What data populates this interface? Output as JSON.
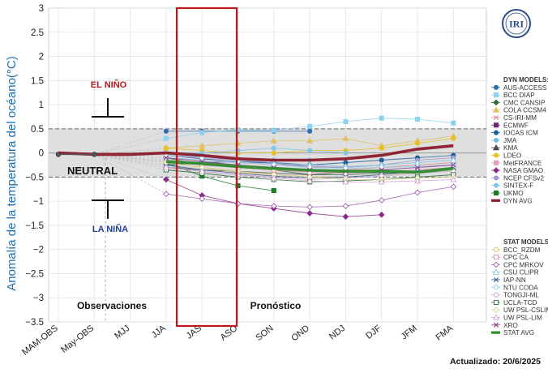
{
  "chart_data": {
    "type": "line",
    "ylabel": "Anomalía  de la temperatura del océano(°C)",
    "ylim": [
      -3.5,
      3
    ],
    "yticks": [
      "3",
      "2.5",
      "2",
      "1.5",
      "1",
      "0.5",
      "0",
      "−0.5",
      "−1",
      "−1.5",
      "−2",
      "−2.5",
      "−3",
      "−3.5"
    ],
    "categories": [
      "MAM-OBS",
      "May-OBS",
      "MJJ",
      "JJA",
      "JAS",
      "ASO",
      "SON",
      "OND",
      "NDJ",
      "DJF",
      "JFM",
      "FMA"
    ],
    "grid": true,
    "legend_position": "right",
    "thresholds": [
      0.5,
      -0.5
    ],
    "annotations": {
      "el_nino": "EL NIÑO",
      "la_nina": "LA NIÑA",
      "neutral": "NEUTRAL",
      "observations": "Observaciones",
      "forecast": "Pronóstico",
      "updated": "Actualizado: 20/6/2025",
      "logo": "IRI"
    },
    "observed": {
      "values": [
        -0.03,
        -0.03
      ]
    },
    "legend_dyn_title": "DYN MODELS:",
    "legend_stat_title": "STAT MODELS:",
    "series": [
      {
        "name": "AUS-ACCESS",
        "group": "dyn",
        "color": "#2e6fb0",
        "marker": "circle",
        "values": [
          null,
          null,
          null,
          0.45,
          0.45,
          0.45,
          0.45,
          0.45,
          null,
          null,
          null,
          null
        ]
      },
      {
        "name": "BCC DIAP",
        "group": "dyn",
        "color": "#8ed3ee",
        "marker": "square",
        "values": [
          null,
          null,
          null,
          0.3,
          0.42,
          0.48,
          0.47,
          0.55,
          0.65,
          0.72,
          0.7,
          0.62
        ]
      },
      {
        "name": "CMC CANSIP",
        "group": "dyn",
        "color": "#2b6b3a",
        "marker": "diamond",
        "values": [
          null,
          null,
          null,
          -0.1,
          -0.25,
          -0.3,
          -0.35,
          -0.45,
          -0.45,
          -0.42,
          -0.4,
          -0.35
        ]
      },
      {
        "name": "COLA CCSM4",
        "group": "dyn",
        "color": "#e0c060",
        "marker": "triangle",
        "values": [
          null,
          null,
          null,
          0.1,
          0.15,
          0.2,
          0.25,
          0.25,
          0.3,
          0.15,
          0.25,
          0.35
        ]
      },
      {
        "name": "CS-IRI-MM",
        "group": "dyn",
        "color": "#e08aa0",
        "marker": "x",
        "values": [
          null,
          null,
          null,
          -0.15,
          -0.22,
          -0.3,
          -0.35,
          -0.38,
          -0.35,
          -0.3,
          -0.25,
          -0.2
        ]
      },
      {
        "name": "ECMWF",
        "group": "dyn",
        "color": "#6a2a7a",
        "marker": "square",
        "values": [
          null,
          null,
          null,
          -0.05,
          -0.12,
          -0.18,
          -0.22,
          -0.28,
          -0.3,
          null,
          null,
          null
        ]
      },
      {
        "name": "IOCAS ICM",
        "group": "dyn",
        "color": "#1f5f9a",
        "marker": "circle",
        "values": [
          null,
          null,
          null,
          -0.25,
          -0.2,
          -0.18,
          -0.2,
          -0.25,
          -0.2,
          -0.15,
          -0.1,
          -0.05
        ]
      },
      {
        "name": "JMA",
        "group": "dyn",
        "color": "#6fc0e0",
        "marker": "circle",
        "values": [
          null,
          null,
          null,
          -0.05,
          -0.08,
          -0.12,
          -0.15,
          -0.15,
          null,
          null,
          null,
          null
        ]
      },
      {
        "name": "KMA",
        "group": "dyn",
        "color": "#4a4a4a",
        "marker": "triangle",
        "values": [
          null,
          null,
          null,
          -0.3,
          -0.35,
          -0.38,
          -0.42,
          -0.45,
          -0.4,
          null,
          null,
          null
        ]
      },
      {
        "name": "LDEO",
        "group": "dyn",
        "color": "#e8c020",
        "marker": "circle",
        "values": [
          null,
          null,
          null,
          0.1,
          0.05,
          0.0,
          0.0,
          0.05,
          0.05,
          0.1,
          0.2,
          0.3
        ]
      },
      {
        "name": "MetFRANCE",
        "group": "dyn",
        "color": "#e8a0b8",
        "marker": "square",
        "values": [
          null,
          null,
          null,
          -0.1,
          -0.15,
          -0.2,
          -0.25,
          -0.28,
          -0.3,
          null,
          null,
          null
        ]
      },
      {
        "name": "NASA GMAO",
        "group": "dyn",
        "color": "#8a2a8a",
        "marker": "diamond",
        "values": [
          null,
          null,
          null,
          -0.55,
          -0.88,
          -1.05,
          -1.15,
          -1.25,
          -1.32,
          -1.28,
          null,
          null
        ]
      },
      {
        "name": "NCEP CFSv2",
        "group": "dyn",
        "color": "#9a9ad0",
        "marker": "circle",
        "values": [
          null,
          null,
          null,
          -0.05,
          -0.1,
          -0.15,
          -0.2,
          -0.3,
          -0.3,
          -0.25,
          -0.15,
          -0.1
        ]
      },
      {
        "name": "SINTEX-F",
        "group": "dyn",
        "color": "#80c8e8",
        "marker": "circle",
        "values": [
          null,
          null,
          null,
          0.0,
          0.0,
          0.05,
          0.1,
          0.05,
          0.0,
          null,
          null,
          null
        ]
      },
      {
        "name": "UKMO",
        "group": "dyn",
        "color": "#1f7a2a",
        "marker": "square",
        "values": [
          null,
          null,
          null,
          -0.2,
          -0.48,
          -0.68,
          -0.78,
          null,
          null,
          null,
          null,
          null
        ]
      },
      {
        "name": "DYN AVG",
        "group": "dyn",
        "color": "#8b1a2b",
        "marker": "line",
        "values": [
          -0.0,
          -0.03,
          -0.03,
          0.0,
          -0.05,
          -0.12,
          -0.15,
          -0.15,
          -0.12,
          -0.05,
          0.08,
          0.15
        ]
      },
      {
        "name": "BCC_RZDM",
        "group": "stat",
        "color": "#e0c060",
        "marker": "circle-open",
        "values": [
          null,
          null,
          null,
          -0.2,
          -0.3,
          -0.4,
          -0.45,
          -0.5,
          -0.5,
          -0.45,
          -0.4,
          -0.35
        ]
      },
      {
        "name": "CPC CA",
        "group": "stat",
        "color": "#e890a8",
        "marker": "square-open",
        "values": [
          null,
          null,
          null,
          -0.15,
          -0.25,
          -0.3,
          -0.35,
          -0.4,
          -0.42,
          -0.4,
          -0.35,
          -0.3
        ]
      },
      {
        "name": "CPC MRKOV",
        "group": "stat",
        "color": "#a060b0",
        "marker": "diamond-open",
        "values": [
          null,
          null,
          null,
          -0.85,
          -0.95,
          -1.05,
          -1.1,
          -1.12,
          -1.1,
          -0.98,
          -0.82,
          -0.7
        ]
      },
      {
        "name": "CSU CLIPR",
        "group": "stat",
        "color": "#80c8e0",
        "marker": "triangle-open",
        "values": [
          null,
          null,
          null,
          -0.1,
          -0.15,
          -0.2,
          -0.22,
          -0.25,
          -0.28,
          -0.25,
          -0.2,
          -0.15
        ]
      },
      {
        "name": "IAP-NN",
        "group": "stat",
        "color": "#2a5a9a",
        "marker": "x",
        "values": [
          null,
          null,
          null,
          -0.25,
          -0.35,
          -0.42,
          -0.48,
          -0.52,
          -0.5,
          -0.45,
          -0.38,
          -0.3
        ]
      },
      {
        "name": "NTU CODA",
        "group": "stat",
        "color": "#90d0e8",
        "marker": "circle-open",
        "values": [
          null,
          null,
          null,
          -0.05,
          -0.1,
          -0.18,
          -0.25,
          -0.3,
          -0.32,
          -0.3,
          -0.28,
          -0.25
        ]
      },
      {
        "name": "TONGJI-ML",
        "group": "stat",
        "color": "#c8a8d0",
        "marker": "circle-open",
        "values": [
          null,
          null,
          null,
          -0.3,
          -0.38,
          -0.45,
          -0.5,
          -0.55,
          -0.52,
          -0.48,
          -0.42,
          -0.38
        ]
      },
      {
        "name": "UCLA-TCD",
        "group": "stat",
        "color": "#1f6a3a",
        "marker": "square-open",
        "values": [
          null,
          null,
          null,
          -0.35,
          -0.42,
          -0.5,
          -0.55,
          -0.6,
          -0.58,
          -0.55,
          -0.5,
          -0.45
        ]
      },
      {
        "name": "UW PSL-CSLIM",
        "group": "stat",
        "color": "#d8d080",
        "marker": "diamond-open",
        "values": [
          null,
          null,
          null,
          -0.2,
          -0.3,
          -0.38,
          -0.45,
          -0.5,
          -0.55,
          -0.55,
          -0.52,
          -0.5
        ]
      },
      {
        "name": "UW PSL-LIM",
        "group": "stat",
        "color": "#d0a0c8",
        "marker": "triangle-open",
        "values": [
          null,
          null,
          null,
          -0.3,
          -0.38,
          -0.45,
          -0.52,
          -0.58,
          -0.6,
          -0.6,
          -0.58,
          -0.55
        ]
      },
      {
        "name": "XRO",
        "group": "stat",
        "color": "#8a3a8a",
        "marker": "x",
        "values": [
          null,
          null,
          null,
          -0.1,
          -0.18,
          -0.25,
          -0.3,
          -0.35,
          -0.38,
          -0.35,
          -0.3,
          -0.25
        ]
      },
      {
        "name": "STAT AVG",
        "group": "stat",
        "color": "#2e8b2e",
        "marker": "line",
        "values": [
          null,
          null,
          null,
          -0.18,
          -0.22,
          -0.28,
          -0.32,
          -0.36,
          -0.38,
          -0.38,
          -0.4,
          -0.32
        ]
      }
    ]
  }
}
